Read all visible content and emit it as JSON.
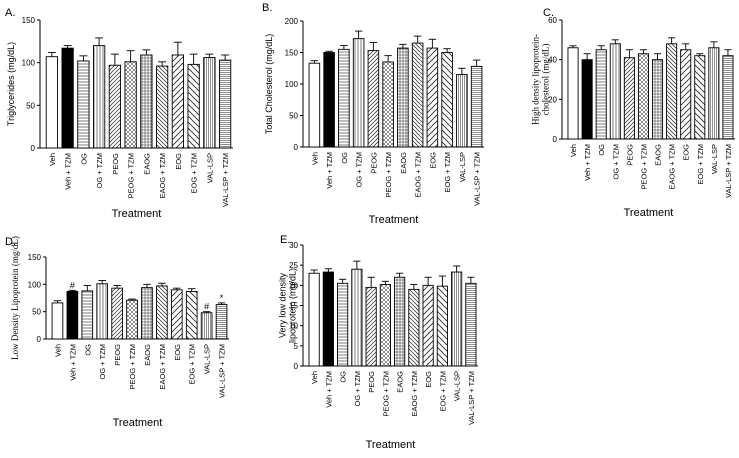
{
  "chart_data": [
    {
      "id": "A",
      "type": "bar",
      "title": "A.",
      "ylabel": "Triglycerides (mg/dL)",
      "xlabel": "Treatment",
      "ylim": [
        0,
        150
      ],
      "yticks": [
        0,
        50,
        100,
        150
      ],
      "categories": [
        "Veh",
        "Veh + TZM",
        "OG",
        "OG + TZM",
        "PEOG",
        "PEOG + TZM",
        "EAOG",
        "EAOG + TZM",
        "EOG",
        "EOG + TZM",
        "VAL-LSP",
        "VAL-LSP + TZM"
      ],
      "values": [
        107,
        117,
        102,
        120,
        97,
        101,
        109,
        96,
        109,
        98,
        106,
        103
      ],
      "errors": [
        5,
        3,
        6,
        9,
        13,
        13,
        6,
        5,
        15,
        12,
        4,
        6
      ],
      "annotations": [
        "",
        "",
        "",
        "",
        "",
        "",
        "",
        "",
        "",
        "",
        "",
        ""
      ]
    },
    {
      "id": "B",
      "type": "bar",
      "title": "B.",
      "ylabel": "Total Cholesterol (mg/dL)",
      "xlabel": "Treatment",
      "ylim": [
        0,
        200
      ],
      "yticks": [
        0,
        50,
        100,
        150,
        200
      ],
      "categories": [
        "Veh",
        "Veh + TZM",
        "OG",
        "OG + TZM",
        "PEOG",
        "PEOG + TZM",
        "EAOG",
        "EAOG + TZM",
        "EOG",
        "EOG + TZM",
        "VAL-LSP",
        "VAL-LSP + TZM"
      ],
      "values": [
        133,
        150,
        155,
        172,
        153,
        135,
        157,
        165,
        157,
        150,
        115,
        128
      ],
      "errors": [
        4,
        2,
        6,
        12,
        13,
        10,
        6,
        11,
        14,
        6,
        10,
        10
      ],
      "annotations": [
        "",
        "",
        "",
        "",
        "",
        "",
        "",
        "",
        "",
        "",
        "",
        ""
      ]
    },
    {
      "id": "C",
      "type": "bar",
      "title": "C.",
      "ylabel": "High density lipoprotein-cholesterol (mg/dL)",
      "xlabel": "Treatment",
      "ylim": [
        0,
        60
      ],
      "yticks": [
        0,
        20,
        40,
        60
      ],
      "categories": [
        "Veh",
        "Veh + TZM",
        "OG",
        "OG + TZM",
        "PEOG",
        "PEOG + TZM",
        "EAOG",
        "EAOG + TZM",
        "EOG",
        "EOG + TZM",
        "VAL-LSP",
        "VAL-LSP + TZM"
      ],
      "values": [
        46,
        40,
        45,
        48,
        41,
        43,
        40,
        48,
        45,
        42,
        46,
        42
      ],
      "errors": [
        1,
        3,
        2,
        2,
        4,
        2,
        3,
        3,
        3,
        1,
        3,
        3
      ],
      "annotations": [
        "",
        "",
        "",
        "",
        "",
        "",
        "",
        "",
        "",
        "",
        "",
        ""
      ]
    },
    {
      "id": "D",
      "type": "bar",
      "title": "D.",
      "ylabel": "Low Density Lipoprotein (mg/dL)",
      "xlabel": "Treatment",
      "ylim": [
        0,
        150
      ],
      "yticks": [
        0,
        50,
        100,
        150
      ],
      "categories": [
        "Veh",
        "Veh + TZM",
        "OG",
        "OG + TZM",
        "PEOG",
        "PEOG + TZM",
        "EAOG",
        "EAOG + TZM",
        "EOG",
        "EOG + TZM",
        "VAL-LSP",
        "VAL-LSP + TZM"
      ],
      "values": [
        66,
        87,
        88,
        101,
        93,
        71,
        94,
        97,
        90,
        87,
        48,
        63
      ],
      "errors": [
        4,
        2,
        10,
        6,
        5,
        2,
        6,
        5,
        3,
        5,
        2,
        3
      ],
      "annotations": [
        "",
        "#",
        "",
        "",
        "",
        "",
        "",
        "",
        "",
        "",
        "#",
        "*"
      ]
    },
    {
      "id": "E",
      "type": "bar",
      "title": "E.",
      "ylabel": "Very low density lipoprotein (mg/dL)",
      "xlabel": "Treatment",
      "ylim": [
        0,
        30
      ],
      "yticks": [
        0,
        5,
        10,
        15,
        20,
        25,
        30
      ],
      "categories": [
        "Veh",
        "Veh + TZM",
        "OG",
        "OG + TZM",
        "PEOG",
        "PEOG + TZM",
        "EAOG",
        "EAOG + TZM",
        "EOG",
        "EOG + TZM",
        "VAL-LSP",
        "VAL-LSP + TZM"
      ],
      "values": [
        23,
        23.3,
        20.5,
        24,
        19.5,
        20.2,
        22,
        19,
        20,
        19.8,
        23.3,
        20.5
      ],
      "errors": [
        0.8,
        0.8,
        1,
        2,
        2.5,
        0.8,
        1,
        1.2,
        2,
        2.5,
        1.5,
        1.5
      ],
      "annotations": [
        "",
        "",
        "",
        "",
        "",
        "",
        "",
        "",
        "",
        "",
        "",
        ""
      ]
    }
  ],
  "bar_styles": [
    "open",
    "solid",
    "hlines",
    "vlines",
    "diag-right",
    "crosshatch",
    "grid",
    "diag-left",
    "diag-right-wide",
    "diag-left-wide",
    "vlines-dense",
    "hlines-dense"
  ]
}
